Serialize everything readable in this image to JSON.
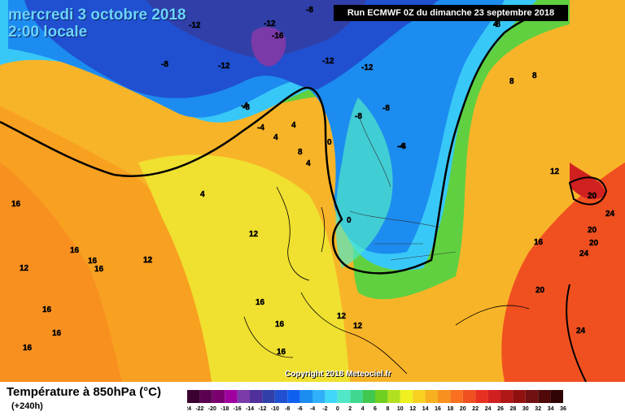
{
  "header": {
    "date_line": "mercredi 3 octobre 2018",
    "time_line": "2:00 locale",
    "run_info": "Run ECMWF 0Z du dimanche 23 septembre 2018"
  },
  "copyright": "Copyright 2018 Meteociel.fr",
  "footer": {
    "title": "Température à 850hPa (°C)",
    "subtitle": "(+240h)"
  },
  "legend": {
    "ticks": [
      "-24",
      "-22",
      "-20",
      "-18",
      "-16",
      "-14",
      "-12",
      "-10",
      "-8",
      "-6",
      "-4",
      "-2",
      "0",
      "2",
      "4",
      "6",
      "8",
      "10",
      "12",
      "14",
      "16",
      "18",
      "20",
      "22",
      "24",
      "26",
      "28",
      "30",
      "32",
      "34",
      "36"
    ],
    "colors": [
      "#3a0030",
      "#5a0050",
      "#7a0070",
      "#a000a0",
      "#7a3aa8",
      "#50309a",
      "#3040a8",
      "#2050d0",
      "#1060f0",
      "#1c8cf0",
      "#30b0f8",
      "#40d8f8",
      "#50e8c8",
      "#40d890",
      "#40c850",
      "#70d020",
      "#b0e020",
      "#f0f020",
      "#f8d020",
      "#f8b020",
      "#f89020",
      "#f87020",
      "#f05020",
      "#e83020",
      "#d02020",
      "#b01818",
      "#901010",
      "#701010",
      "#500808",
      "#300404"
    ],
    "colors_note": ""
  },
  "map_labels": [
    {
      "text": "-12"
    },
    {
      "text": "-8"
    },
    {
      "text": "-12"
    },
    {
      "text": "-12"
    },
    {
      "text": "-16"
    },
    {
      "text": "-8"
    },
    {
      "text": "-12"
    },
    {
      "text": "-12"
    },
    {
      "text": "-8"
    },
    {
      "text": "-8"
    },
    {
      "text": "-4"
    },
    {
      "text": "-4"
    },
    {
      "text": "-8"
    },
    {
      "text": "-8"
    },
    {
      "text": "-4"
    },
    {
      "text": "-4"
    },
    {
      "text": "4"
    },
    {
      "text": "4"
    },
    {
      "text": "8"
    },
    {
      "text": "4"
    },
    {
      "text": "4"
    },
    {
      "text": "0"
    },
    {
      "text": "0"
    },
    {
      "text": "4"
    },
    {
      "text": "8"
    },
    {
      "text": "8"
    },
    {
      "text": "12"
    },
    {
      "text": "20"
    },
    {
      "text": "24"
    },
    {
      "text": "20"
    },
    {
      "text": "20"
    },
    {
      "text": "24"
    },
    {
      "text": "16"
    },
    {
      "text": "20"
    },
    {
      "text": "24"
    },
    {
      "text": "16"
    },
    {
      "text": "12"
    },
    {
      "text": "16"
    },
    {
      "text": "16"
    },
    {
      "text": "12"
    },
    {
      "text": "16"
    },
    {
      "text": "12"
    },
    {
      "text": "16"
    },
    {
      "text": "16"
    },
    {
      "text": "16"
    },
    {
      "text": "16"
    },
    {
      "text": "12"
    },
    {
      "text": "12"
    },
    {
      "text": "16"
    },
    {
      "text": "16"
    },
    {
      "text": "12"
    }
  ]
}
